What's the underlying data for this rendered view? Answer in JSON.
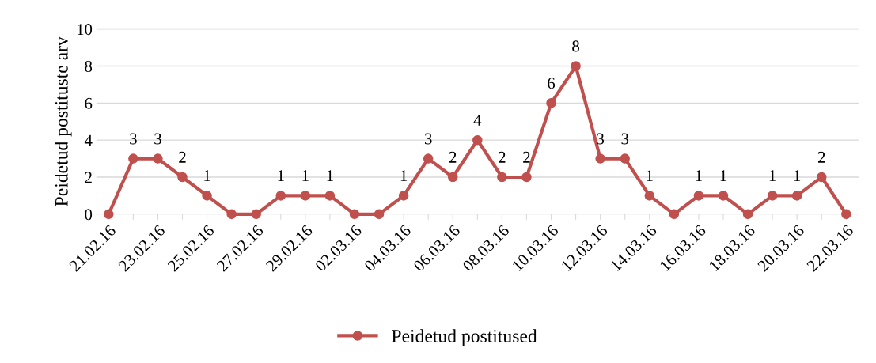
{
  "chart_data": {
    "type": "line",
    "ylabel": "Peidetud postituste arv",
    "categories": [
      "21.02.16",
      null,
      "23.02.16",
      null,
      "25.02.16",
      null,
      "27.02.16",
      null,
      "29.02.16",
      null,
      "02.03.16",
      null,
      "04.03.16",
      null,
      "06.03.16",
      null,
      "08.03.16",
      null,
      "10.03.16",
      null,
      "12.03.16",
      null,
      "14.03.16",
      null,
      "16.03.16",
      null,
      "18.03.16",
      null,
      "20.03.16",
      null,
      "22.03.16"
    ],
    "series": [
      {
        "name": "Peidetud postitused",
        "color": "#c0504d",
        "values": [
          0,
          3,
          3,
          2,
          1,
          0,
          0,
          1,
          1,
          1,
          0,
          0,
          1,
          3,
          2,
          4,
          2,
          2,
          6,
          8,
          3,
          3,
          1,
          0,
          1,
          1,
          0,
          1,
          1,
          2,
          0
        ],
        "value_labels": [
          null,
          "3",
          "3",
          "2",
          "1",
          null,
          null,
          "1",
          "1",
          "1",
          null,
          null,
          "1",
          "3",
          "2",
          "4",
          "2",
          "2",
          "6",
          "8",
          "3",
          "3",
          "1",
          null,
          "1",
          "1",
          null,
          "1",
          "1",
          "2",
          null
        ]
      }
    ],
    "ylim": [
      0,
      10
    ],
    "yticks": [
      0,
      2,
      4,
      6,
      8,
      10
    ],
    "grid": "y",
    "legend": "bottom",
    "marker": "circle",
    "line_style": "solid"
  }
}
